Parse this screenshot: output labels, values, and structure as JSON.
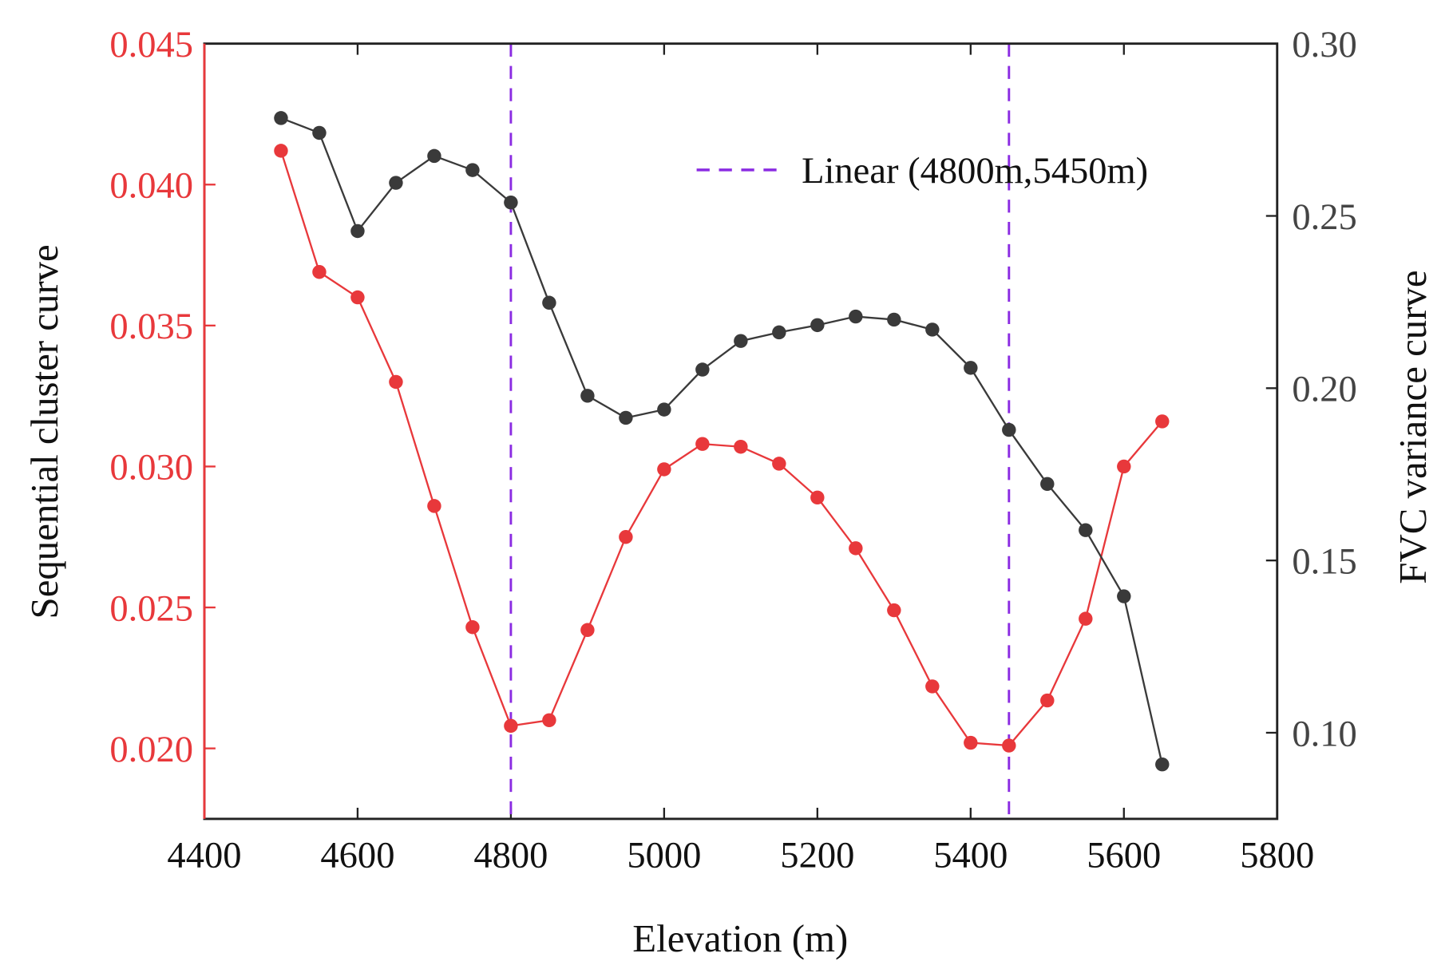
{
  "chart_data": {
    "type": "line",
    "title": "",
    "xlabel": "Elevation (m)",
    "ylabel_left": "Sequential cluster curve",
    "ylabel_right": "FVC variance curve",
    "xlim": [
      4400,
      5800
    ],
    "ylim_left": [
      0.0175,
      0.045
    ],
    "ylim_right": [
      0.075,
      0.3
    ],
    "xticks": [
      4400,
      4600,
      4800,
      5000,
      5200,
      5400,
      5600,
      5800
    ],
    "yticks_left": [
      "0.020",
      "0.025",
      "0.030",
      "0.035",
      "0.040",
      "0.045"
    ],
    "yticks_right": [
      "0.10",
      "0.15",
      "0.20",
      "0.25",
      "0.30"
    ],
    "x": [
      4500,
      4550,
      4600,
      4650,
      4700,
      4750,
      4800,
      4850,
      4900,
      4950,
      5000,
      5050,
      5100,
      5150,
      5200,
      5250,
      5300,
      5350,
      5400,
      5450,
      5500,
      5550,
      5600,
      5650
    ],
    "series": [
      {
        "name": "Sequential cluster curve",
        "axis": "left",
        "color": "#e8383b",
        "values": [
          0.0412,
          0.0369,
          0.036,
          0.033,
          0.0286,
          0.0243,
          0.0208,
          0.021,
          0.0242,
          0.0275,
          0.0299,
          0.0308,
          0.0307,
          0.0301,
          0.0289,
          0.0271,
          0.0249,
          0.0222,
          0.0202,
          0.0201,
          0.0217,
          0.0246,
          0.03,
          0.0316
        ]
      },
      {
        "name": "FVC variance curve",
        "axis": "right",
        "color": "#3a3a3a",
        "values": [
          0.2784,
          0.2741,
          0.2456,
          0.2596,
          0.2674,
          0.2633,
          0.2539,
          0.2248,
          0.1978,
          0.1914,
          0.1938,
          0.2054,
          0.2137,
          0.2162,
          0.2183,
          0.2208,
          0.2199,
          0.217,
          0.2059,
          0.1879,
          0.1722,
          0.1588,
          0.1396,
          0.0908
        ]
      }
    ],
    "vlines": {
      "label": "Linear (4800m,5450m)",
      "x": [
        4800,
        5450
      ],
      "color": "#8a2be2",
      "style": "dashed"
    },
    "legend_position": "top-right",
    "grid": false
  }
}
